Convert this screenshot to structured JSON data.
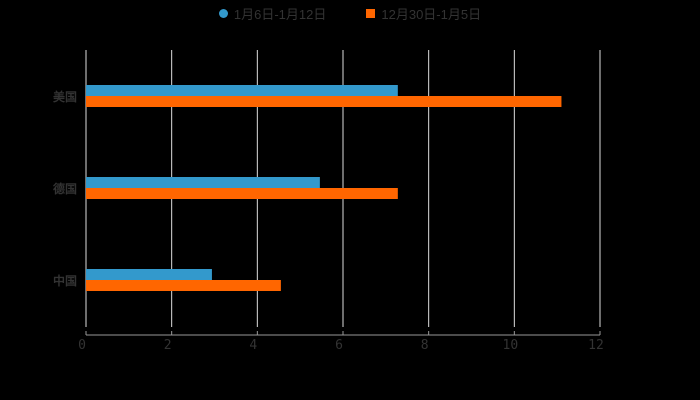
{
  "chart_data": {
    "type": "bar",
    "orientation": "horizontal",
    "title": "",
    "categories": [
      "美国",
      "德国",
      "中国"
    ],
    "series": [
      {
        "name": "1月6日-1月12日",
        "color": "#3399cc",
        "values": [
          7.28,
          5.46,
          2.94
        ]
      },
      {
        "name": "12月30日-1月5日",
        "color": "#ff6600",
        "values": [
          11.1,
          7.28,
          4.55
        ]
      }
    ],
    "xlabel": "",
    "ylabel": "",
    "xlim": [
      0,
      12
    ],
    "xticks": [
      "0",
      "2",
      "4",
      "6",
      "8",
      "10",
      "12"
    ],
    "grid": true,
    "legend_position": "top"
  },
  "legend": [
    {
      "label": "1月6日-1月12日",
      "color": "#3399cc",
      "shape": "circle"
    },
    {
      "label": "12月30日-1月5日",
      "color": "#ff6600",
      "shape": "square"
    }
  ]
}
